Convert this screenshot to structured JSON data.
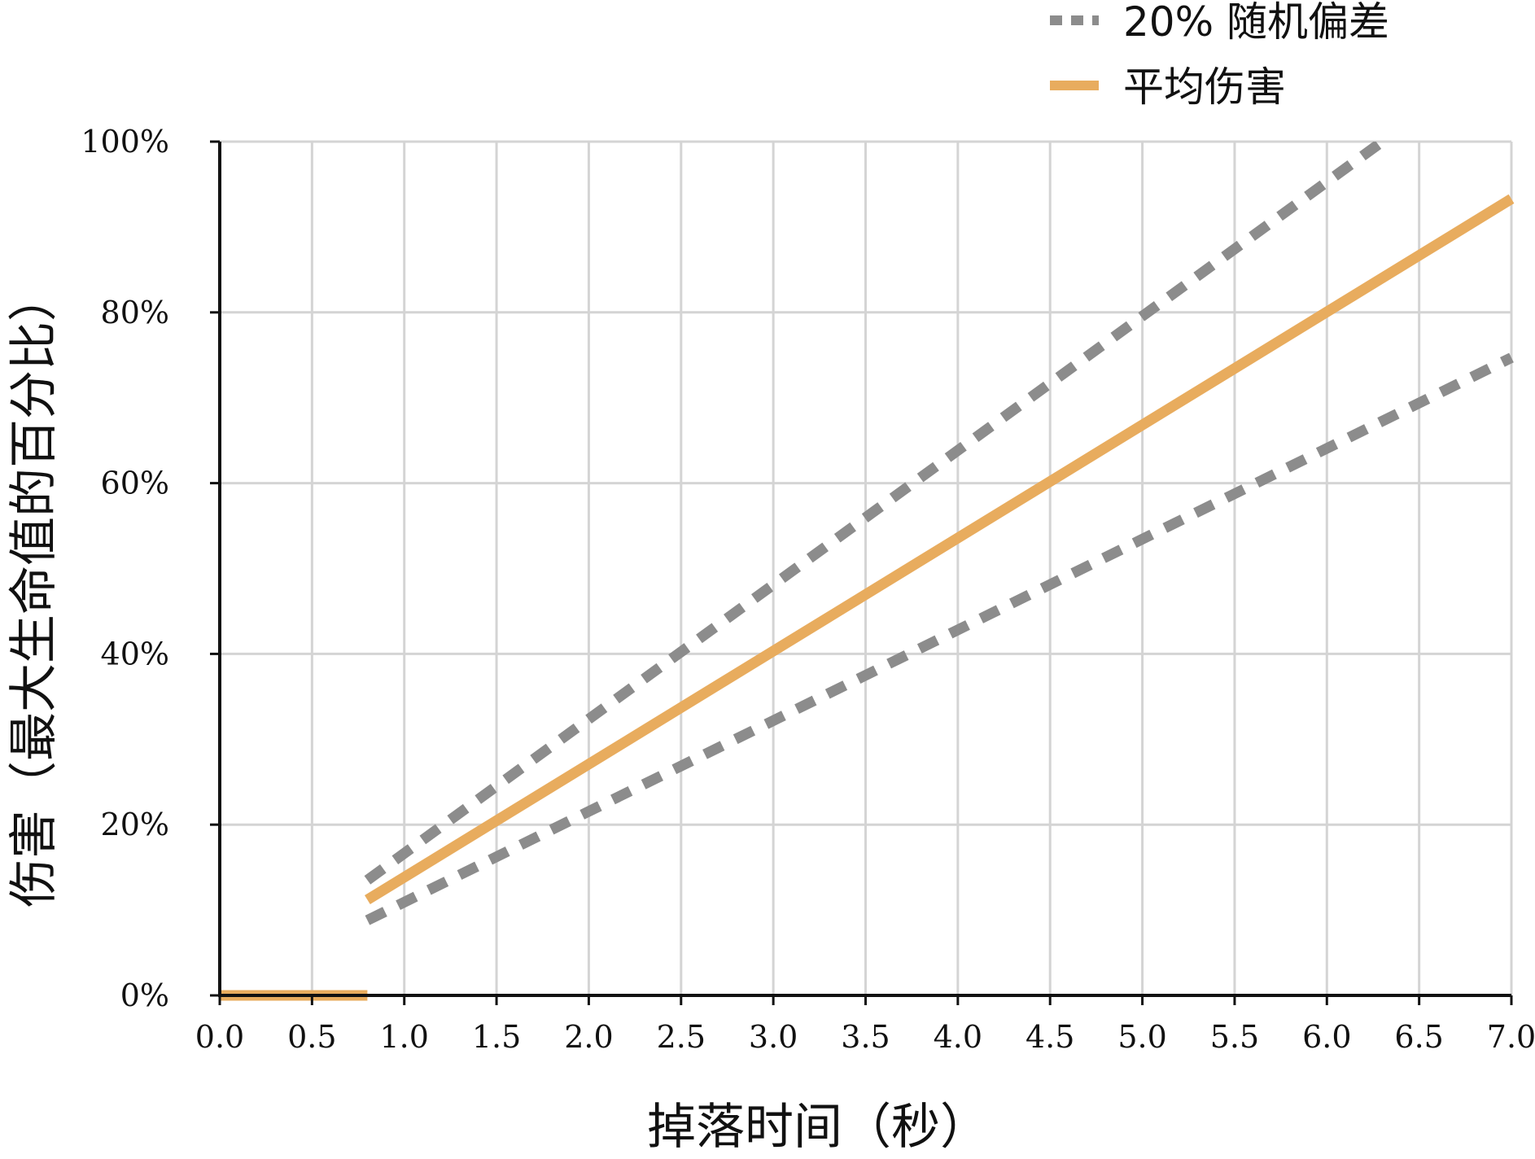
{
  "chart_data": {
    "type": "line",
    "xlabel": "掉落时间（秒）",
    "ylabel": "伤害（最大生命值的百分比）",
    "xlim": [
      0,
      7
    ],
    "ylim": [
      0,
      100
    ],
    "x_ticks": [
      "0.0",
      "0.5",
      "1.0",
      "1.5",
      "2.0",
      "2.5",
      "3.0",
      "3.5",
      "4.0",
      "4.5",
      "5.0",
      "5.5",
      "6.0",
      "6.5",
      "7.0"
    ],
    "y_ticks": [
      "0%",
      "20%",
      "40%",
      "60%",
      "80%",
      "100%"
    ],
    "grid": true,
    "legend_position": "top-right",
    "series": [
      {
        "name": "20% 随机偏差",
        "style": "dashed",
        "color": "#8c8c8c",
        "segments": [
          [
            [
              0.8,
              13.5
            ],
            [
              6.3,
              100
            ]
          ],
          [
            [
              0.8,
              8.8
            ],
            [
              7.0,
              74.7
            ]
          ]
        ]
      },
      {
        "name": "平均伤害",
        "style": "solid",
        "color": "#e8ac5e",
        "segments": [
          [
            [
              0.0,
              0
            ],
            [
              0.8,
              0
            ]
          ],
          [
            [
              0.8,
              11.2
            ],
            [
              7.0,
              93.3
            ]
          ]
        ]
      }
    ]
  }
}
